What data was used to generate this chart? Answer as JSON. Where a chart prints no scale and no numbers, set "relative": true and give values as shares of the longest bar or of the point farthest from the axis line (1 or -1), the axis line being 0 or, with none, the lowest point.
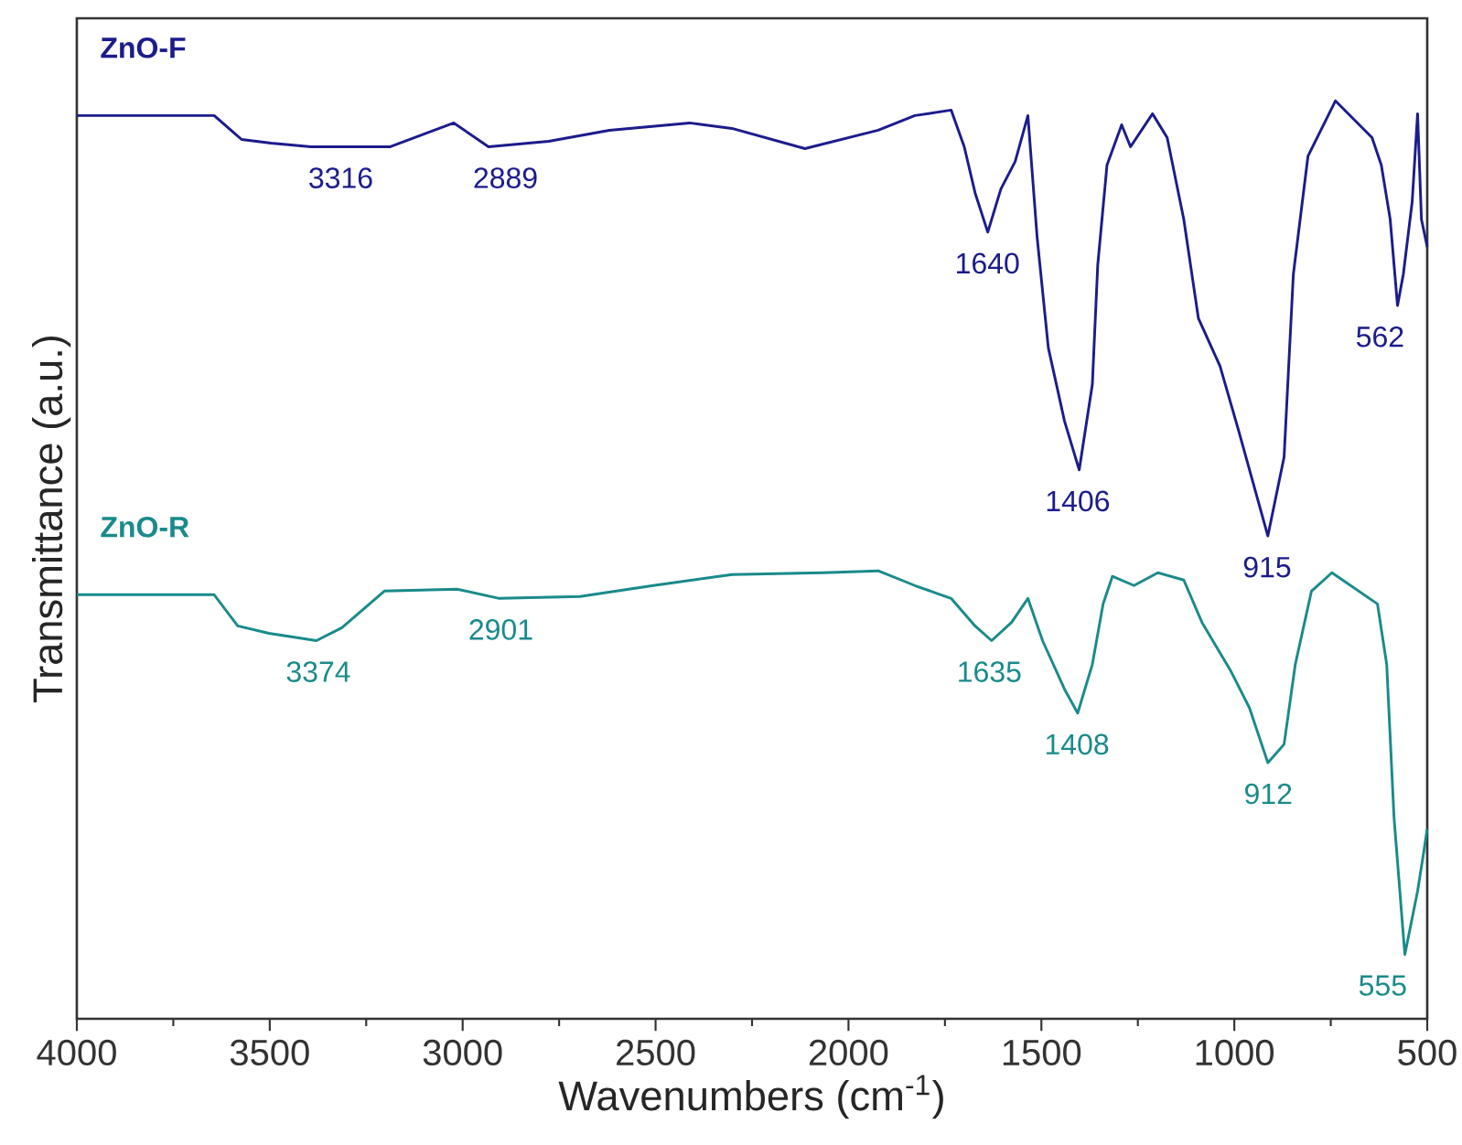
{
  "chart_data": {
    "type": "line",
    "relative": true,
    "xlabel": "Wavenumbers (cm$^{-1}$)",
    "ylabel": "Transmittance (a.u.)",
    "xlim": [
      4000,
      500
    ],
    "xticks": [
      4000,
      3500,
      3000,
      2500,
      2000,
      1500,
      1000,
      500
    ],
    "tick_labels": "x",
    "grid": false,
    "legend": false,
    "marker": "none",
    "line_style": "solid",
    "series": [
      {
        "name": "ZnO-F",
        "color": "#1c1c8c",
        "x": [
          4000,
          3644,
          3573,
          3497,
          3393,
          3189,
          3023,
          2933,
          2777,
          2620,
          2412,
          2302,
          2113,
          1923,
          1828,
          1734,
          1700,
          1672,
          1639,
          1605,
          1568,
          1535,
          1511,
          1482,
          1440,
          1402,
          1368,
          1354,
          1330,
          1292,
          1269,
          1212,
          1174,
          1131,
          1093,
          1037,
          989,
          913,
          871,
          847,
          809,
          738,
          643,
          619,
          596,
          577,
          562,
          539,
          525,
          515,
          500
        ],
        "values": [
          0.984,
          0.984,
          0.958,
          0.954,
          0.95,
          0.95,
          0.976,
          0.95,
          0.956,
          0.968,
          0.976,
          0.97,
          0.948,
          0.968,
          0.984,
          0.99,
          0.95,
          0.9,
          0.857,
          0.904,
          0.934,
          0.984,
          0.851,
          0.731,
          0.651,
          0.598,
          0.691,
          0.821,
          0.93,
          0.974,
          0.95,
          0.986,
          0.96,
          0.871,
          0.763,
          0.711,
          0.641,
          0.526,
          0.612,
          0.811,
          0.94,
          1.0,
          0.96,
          0.93,
          0.871,
          0.777,
          0.811,
          0.89,
          0.986,
          0.871,
          0.841
        ]
      },
      {
        "name": "ZnO-R",
        "color": "#1a8a8a",
        "x": [
          4000,
          3644,
          3583,
          3502,
          3379,
          3313,
          3203,
          3014,
          2905,
          2696,
          2506,
          2302,
          2065,
          1923,
          1828,
          1734,
          1672,
          1629,
          1577,
          1535,
          1497,
          1440,
          1406,
          1368,
          1340,
          1316,
          1260,
          1198,
          1131,
          1084,
          1008,
          961,
          913,
          871,
          842,
          800,
          747,
          629,
          605,
          586,
          558,
          525,
          510,
          500
        ],
        "values": [
          0.462,
          0.462,
          0.428,
          0.42,
          0.412,
          0.426,
          0.466,
          0.468,
          0.458,
          0.46,
          0.472,
          0.484,
          0.486,
          0.488,
          0.472,
          0.458,
          0.428,
          0.412,
          0.432,
          0.458,
          0.412,
          0.359,
          0.333,
          0.386,
          0.452,
          0.482,
          0.472,
          0.486,
          0.478,
          0.432,
          0.378,
          0.339,
          0.279,
          0.299,
          0.386,
          0.466,
          0.486,
          0.452,
          0.386,
          0.219,
          0.07,
          0.139,
          0.179,
          0.207
        ]
      }
    ],
    "annotations": [
      {
        "text": "3316",
        "x": 3316,
        "y": 0.95
      },
      {
        "text": "2889",
        "x": 2889,
        "y": 0.95
      },
      {
        "text": "1640",
        "x": 1640,
        "y": 0.857
      },
      {
        "text": "1406",
        "x": 1406,
        "y": 0.598
      },
      {
        "text": "915",
        "x": 915,
        "y": 0.526
      },
      {
        "text": "562",
        "x": 562,
        "y": 0.777
      },
      {
        "text": "3374",
        "x": 3374,
        "y": 0.412
      },
      {
        "text": "2901",
        "x": 2901,
        "y": 0.458
      },
      {
        "text": "1635",
        "x": 1635,
        "y": 0.412
      },
      {
        "text": "1408",
        "x": 1408,
        "y": 0.333
      },
      {
        "text": "912",
        "x": 912,
        "y": 0.279
      },
      {
        "text": "555",
        "x": 555,
        "y": 0.07
      }
    ]
  }
}
